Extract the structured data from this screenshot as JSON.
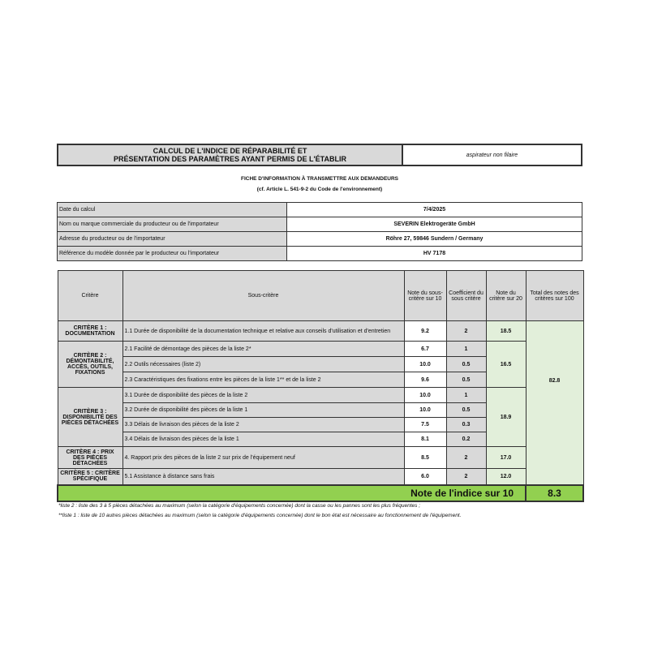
{
  "header": {
    "title_line1": "CALCUL DE L'INDICE DE RÉPARABILITÉ ET",
    "title_line2": "PRÉSENTATION DES PARAMÈTRES AYANT PERMIS DE L'ÉTABLIR",
    "product_type": "aspirateur non filaire"
  },
  "subtitle": {
    "line1": "FICHE D'INFORMATION À TRANSMETTRE AUX DEMANDEURS",
    "line2": "(cf. Article L. 541-9-2 du Code de l'environnement)"
  },
  "info": [
    {
      "label": "Date du calcul",
      "value": "7/4/2025"
    },
    {
      "label": "Nom ou marque commerciale du producteur ou de l'importateur",
      "value": "SEVERIN Elektrogeräte GmbH"
    },
    {
      "label": "Adresse du producteur ou de l'importateur",
      "value": "Röhre 27, 59846 Sundern / Germany"
    },
    {
      "label": "Référence du modèle donnée par le producteur ou l'importateur",
      "value": "HV 7178"
    }
  ],
  "columns": {
    "critere": "Critère",
    "sous_critere": "Sous-critère",
    "note_sous": "Note du sous-critère sur 10",
    "coef": "Coefficient du sous critère",
    "note_critere": "Note du critère sur 20",
    "total": "Total des notes des critères sur 100"
  },
  "criteria": [
    {
      "name": "CRITÈRE 1 : DOCUMENTATION",
      "score20": "18.5",
      "subs": [
        {
          "label": "1.1 Durée de disponibilité de la documentation technique et relative aux conseils d'utilisation et d'entretien",
          "note": "9.2",
          "coef": "2"
        }
      ]
    },
    {
      "name": "CRITÈRE 2 : DÉMONTABILITÉ, ACCÈS, OUTILS, FIXATIONS",
      "score20": "16.5",
      "subs": [
        {
          "label": "2.1 Facilité de démontage des pièces de la liste 2*",
          "note": "6.7",
          "coef": "1"
        },
        {
          "label": "2.2 Outils nécessaires (liste 2)",
          "note": "10.0",
          "coef": "0.5"
        },
        {
          "label": "2.3 Caractéristiques des fixations entre les pièces de la liste 1** et de la liste 2",
          "note": "9.6",
          "coef": "0.5"
        }
      ]
    },
    {
      "name": "CRITÈRE 3 : DISPONIBILITÉ DES PIÈCES DÉTACHÉES",
      "score20": "18.9",
      "subs": [
        {
          "label": "3.1 Durée de disponibilité des pièces de la liste 2",
          "note": "10.0",
          "coef": "1"
        },
        {
          "label": "3.2 Durée de disponibilité des pièces de la liste 1",
          "note": "10.0",
          "coef": "0.5"
        },
        {
          "label": "3.3 Délais de livraison des pièces de la liste 2",
          "note": "7.5",
          "coef": "0.3"
        },
        {
          "label": "3.4 Délais de livraison des pièces de la liste 1",
          "note": "8.1",
          "coef": "0.2"
        }
      ]
    },
    {
      "name": "CRITÈRE 4 : PRIX DES PIÈCES DÉTACHÉES",
      "score20": "17.0",
      "subs": [
        {
          "label": "4. Rapport prix des pièces de la liste 2 sur prix de l'équipement neuf",
          "note": "8.5",
          "coef": "2"
        }
      ]
    },
    {
      "name": "CRITÈRE 5 : CRITÈRE SPÉCIFIQUE",
      "score20": "12.0",
      "subs": [
        {
          "label": "5.1 Assistance à distance sans frais",
          "note": "6.0",
          "coef": "2"
        }
      ]
    }
  ],
  "total100": "82.8",
  "index": {
    "label": "Note de l'indice sur 10",
    "value": "8.3"
  },
  "footnotes": [
    "*liste 2 : liste des 3 à 5 pièces détachées au maximum (selon la catégorie d'équipements concernée) dont la casse ou les pannes sont les plus fréquentes ;",
    "**liste 1 : liste de 10 autres pièces détachées au maximum (selon la catégorie d'équipements concernée) dont le bon état est nécessaire au fonctionnement de l'équipement."
  ],
  "colors": {
    "gray": "#d9d9d9",
    "light_green": "#e2efda",
    "green": "#92d050"
  }
}
